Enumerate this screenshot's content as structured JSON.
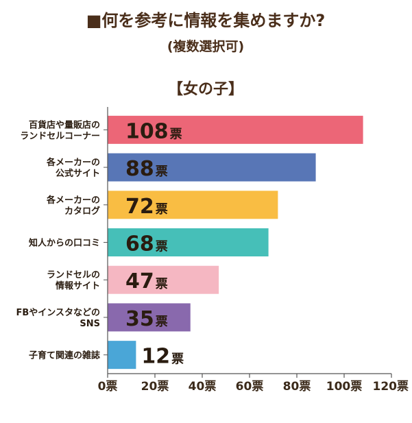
{
  "chart_data": {
    "type": "bar",
    "orientation": "horizontal",
    "title": "■何を参考に情報を集めますか?",
    "subtitle": "(複数選択可)",
    "group_label": "【女の子】",
    "unit": "票",
    "categories": [
      [
        "百貨店や量販店の",
        "ランドセルコーナー"
      ],
      [
        "各メーカーの",
        "公式サイト"
      ],
      [
        "各メーカーの",
        "カタログ"
      ],
      [
        "知人からの口コミ"
      ],
      [
        "ランドセルの",
        "情報サイト"
      ],
      [
        "FBやインスタなどの",
        "SNS"
      ],
      [
        "子育て関連の雑誌"
      ]
    ],
    "values": [
      108,
      88,
      72,
      68,
      47,
      35,
      12
    ],
    "colors": [
      "#ec6677",
      "#5876b6",
      "#f9bd43",
      "#46bfb8",
      "#f5b7c2",
      "#8969ad",
      "#4aa6d7"
    ],
    "xlim": [
      0,
      120
    ],
    "xticks": [
      0,
      20,
      40,
      60,
      80,
      100,
      120
    ],
    "xtick_labels": [
      "0票",
      "20票",
      "40票",
      "60票",
      "80票",
      "100票",
      "120票"
    ],
    "grid": false,
    "legend": "none"
  }
}
